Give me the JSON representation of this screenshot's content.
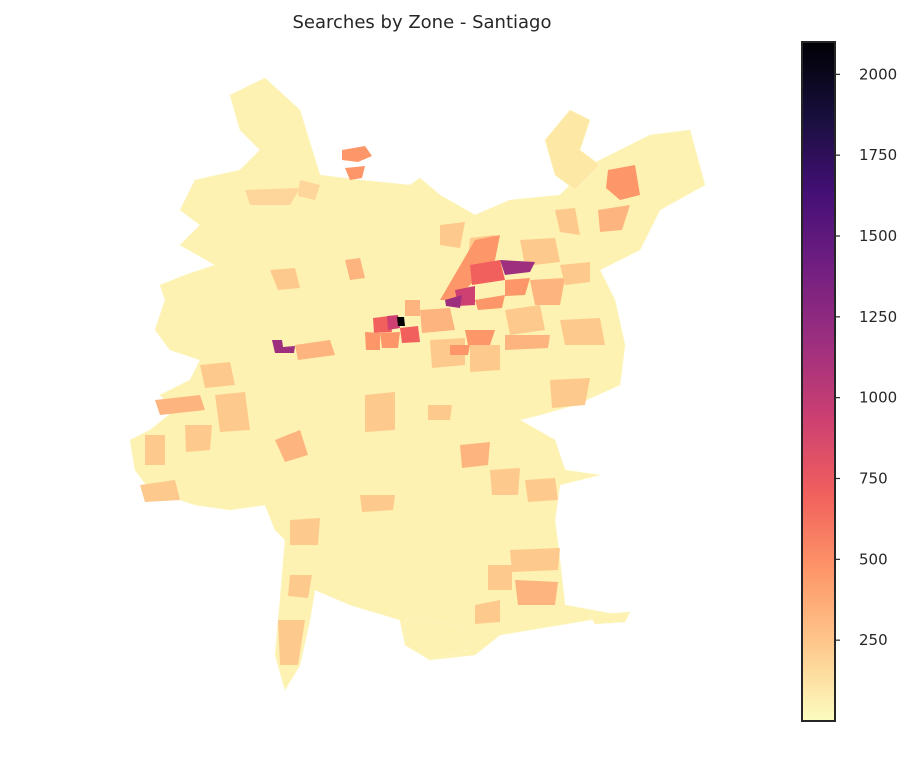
{
  "chart_data": {
    "type": "choropleth",
    "title": "Searches by Zone - Santiago",
    "colormap": "magma_r",
    "color_min": 0,
    "color_max": 2100,
    "colorbar_ticks": [
      250,
      500,
      750,
      1000,
      1250,
      1500,
      1750,
      2000
    ],
    "colorbar_tick_labels": [
      "250",
      "500",
      "750",
      "1000",
      "1250",
      "1500",
      "1750",
      "2000"
    ],
    "colormap_stops": [
      "#fcfdbf",
      "#fec98d",
      "#fd9668",
      "#f1605d",
      "#cd4071",
      "#9e2f7f",
      "#721f81",
      "#440f76",
      "#180f3d",
      "#000004"
    ],
    "zones_summary": "Most zones have low counts (light yellow); a central-eastern corridor shows high values (red/purple) with the maximum near the city center."
  }
}
